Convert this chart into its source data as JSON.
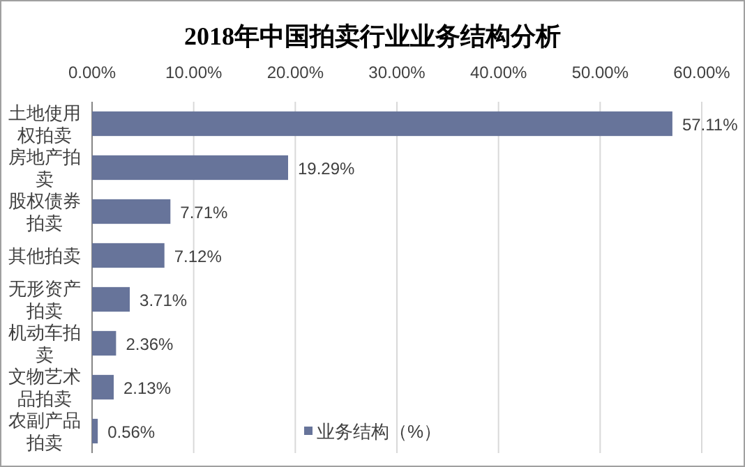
{
  "chart_data": {
    "type": "bar",
    "orientation": "horizontal",
    "title": "2018年中国拍卖行业业务结构分析",
    "categories": [
      "土地使用权拍卖",
      "房地产拍卖",
      "股权债券拍卖",
      "其他拍卖",
      "无形资产拍卖",
      "机动车拍卖",
      "文物艺术品拍卖",
      "农副产品拍卖"
    ],
    "series": [
      {
        "name": "业务结构（%）",
        "color": "#67749a",
        "values": [
          57.11,
          19.29,
          7.71,
          7.12,
          3.71,
          2.36,
          2.13,
          0.56
        ],
        "value_labels": [
          "57.11%",
          "19.29%",
          "7.71%",
          "7.12%",
          "3.71%",
          "2.36%",
          "2.13%",
          "0.56%"
        ]
      }
    ],
    "xlim": [
      0,
      60
    ],
    "xticks": [
      {
        "value": 0,
        "label": "0.00%"
      },
      {
        "value": 10,
        "label": "10.00%"
      },
      {
        "value": 20,
        "label": "20.00%"
      },
      {
        "value": 30,
        "label": "30.00%"
      },
      {
        "value": 40,
        "label": "40.00%"
      },
      {
        "value": 50,
        "label": "50.00%"
      },
      {
        "value": 60,
        "label": "60.00%"
      }
    ],
    "grid": "x",
    "legend": "bottom"
  }
}
